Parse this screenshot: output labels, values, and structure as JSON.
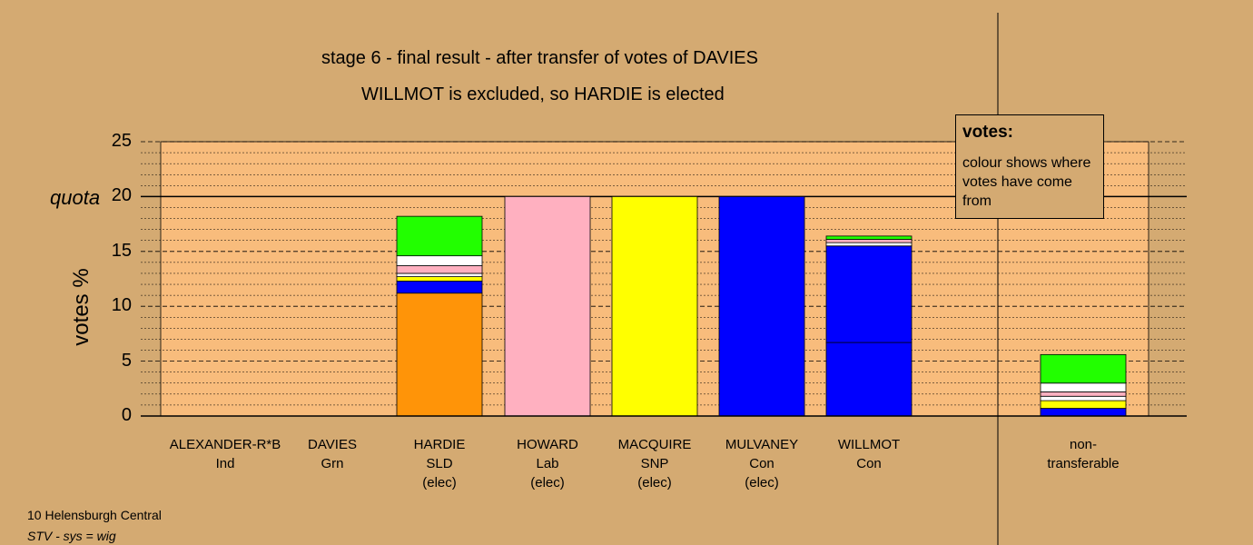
{
  "title": "stage 6 - final result - after transfer of votes of DAVIES",
  "subtitle": "WILLMOT is excluded, so HARDIE is elected",
  "ylabel": "votes %",
  "quota_label": "quota",
  "legend": {
    "title": "votes:",
    "text": "colour shows where votes have come from"
  },
  "footer": {
    "ward": "10 Helensburgh Central",
    "system": "STV - sys = wig"
  },
  "chart_data": {
    "type": "bar",
    "stacked": true,
    "ylim": [
      0,
      25
    ],
    "yticks": [
      "0",
      "5",
      "10",
      "15",
      "20",
      "25"
    ],
    "quota": 20,
    "categories": [
      {
        "name": "ALEXANDER-R*B",
        "party": "Ind",
        "status": ""
      },
      {
        "name": "DAVIES",
        "party": "Grn",
        "status": ""
      },
      {
        "name": "HARDIE",
        "party": "SLD",
        "status": "(elec)"
      },
      {
        "name": "HOWARD",
        "party": "Lab",
        "status": "(elec)"
      },
      {
        "name": "MACQUIRE",
        "party": "SNP",
        "status": "(elec)"
      },
      {
        "name": "MULVANEY",
        "party": "Con",
        "status": "(elec)"
      },
      {
        "name": "WILLMOT",
        "party": "Con",
        "status": ""
      },
      {
        "name": "non-",
        "party": "transferable",
        "status": ""
      }
    ],
    "segments": [
      [],
      [],
      [
        {
          "value": 11.2,
          "color": "#ff9408"
        },
        {
          "value": 1.1,
          "color": "#0000ff"
        },
        {
          "value": 0.4,
          "color": "#ffff00"
        },
        {
          "value": 0.3,
          "color": "#ffffff"
        },
        {
          "value": 0.7,
          "color": "#ffb0c0"
        },
        {
          "value": 0.9,
          "color": "#ffffff"
        },
        {
          "value": 3.6,
          "color": "#22ff00"
        }
      ],
      [
        {
          "value": 20.0,
          "color": "#ffb0c0"
        }
      ],
      [
        {
          "value": 20.0,
          "color": "#ffff00"
        }
      ],
      [
        {
          "value": 20.0,
          "color": "#0000ff"
        }
      ],
      [
        {
          "value": 6.7,
          "color": "#0000ff"
        },
        {
          "value": 8.8,
          "color": "#0000ff"
        },
        {
          "value": 0.3,
          "color": "#ffffff"
        },
        {
          "value": 0.3,
          "color": "#ffb0c0"
        },
        {
          "value": 0.3,
          "color": "#22ff00"
        }
      ],
      [
        {
          "value": 0.7,
          "color": "#0000ff"
        },
        {
          "value": 0.7,
          "color": "#ffff00"
        },
        {
          "value": 0.4,
          "color": "#ffffff"
        },
        {
          "value": 0.4,
          "color": "#ffb0c0"
        },
        {
          "value": 0.8,
          "color": "#ffffff"
        },
        {
          "value": 2.6,
          "color": "#22ff00"
        }
      ]
    ]
  }
}
